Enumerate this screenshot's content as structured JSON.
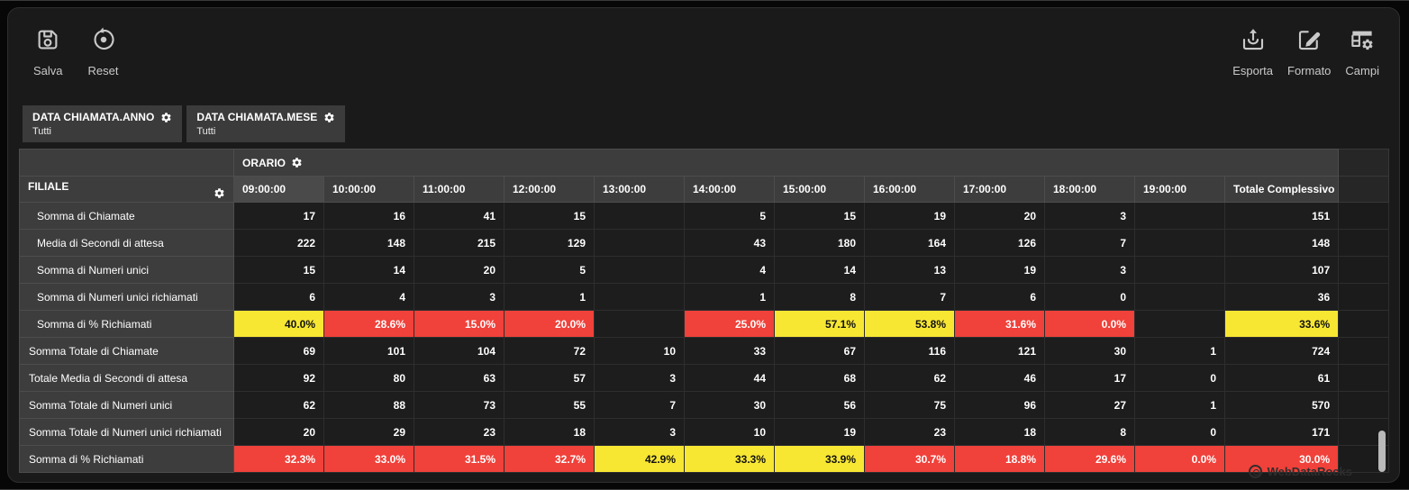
{
  "toolbar": {
    "left": [
      {
        "label": "Salva"
      },
      {
        "label": "Reset"
      }
    ],
    "right": [
      {
        "label": "Esporta"
      },
      {
        "label": "Formato"
      },
      {
        "label": "Campi"
      }
    ]
  },
  "filters": [
    {
      "name": "DATA CHIAMATA.ANNO",
      "value": "Tutti"
    },
    {
      "name": "DATA CHIAMATA.MESE",
      "value": "Tutti"
    }
  ],
  "pivot": {
    "column_group_label": "ORARIO",
    "row_group_label": "FILIALE",
    "columns": [
      "09:00:00",
      "10:00:00",
      "11:00:00",
      "12:00:00",
      "13:00:00",
      "14:00:00",
      "15:00:00",
      "16:00:00",
      "17:00:00",
      "18:00:00",
      "19:00:00",
      "Totale Complessivo"
    ],
    "rows": [
      {
        "label": "Somma di Chiamate",
        "indent": 1,
        "cells": [
          "17",
          "16",
          "41",
          "15",
          "",
          "5",
          "15",
          "19",
          "20",
          "3",
          "",
          "151"
        ]
      },
      {
        "label": "Media di Secondi di attesa",
        "indent": 1,
        "cells": [
          "222",
          "148",
          "215",
          "129",
          "",
          "43",
          "180",
          "164",
          "126",
          "7",
          "",
          "148"
        ]
      },
      {
        "label": "Somma di Numeri unici",
        "indent": 1,
        "cells": [
          "15",
          "14",
          "20",
          "5",
          "",
          "4",
          "14",
          "13",
          "19",
          "3",
          "",
          "107"
        ]
      },
      {
        "label": "Somma di Numeri unici richiamati",
        "indent": 1,
        "cells": [
          "6",
          "4",
          "3",
          "1",
          "",
          "1",
          "8",
          "7",
          "6",
          "0",
          "",
          "36"
        ]
      },
      {
        "label": "Somma di % Richiamati",
        "indent": 1,
        "cells": [
          "40.0%",
          "28.6%",
          "15.0%",
          "20.0%",
          "",
          "25.0%",
          "57.1%",
          "53.8%",
          "31.6%",
          "0.0%",
          "",
          "33.6%"
        ],
        "colors": [
          "yellow",
          "red",
          "red",
          "red",
          "",
          "red",
          "yellow",
          "yellow",
          "red",
          "red",
          "",
          "yellow"
        ]
      },
      {
        "label": "Somma Totale di Chiamate",
        "indent": 0,
        "cells": [
          "69",
          "101",
          "104",
          "72",
          "10",
          "33",
          "67",
          "116",
          "121",
          "30",
          "1",
          "724"
        ]
      },
      {
        "label": "Totale Media di Secondi di attesa",
        "indent": 0,
        "cells": [
          "92",
          "80",
          "63",
          "57",
          "3",
          "44",
          "68",
          "62",
          "46",
          "17",
          "0",
          "61"
        ]
      },
      {
        "label": "Somma Totale di Numeri unici",
        "indent": 0,
        "cells": [
          "62",
          "88",
          "73",
          "55",
          "7",
          "30",
          "56",
          "75",
          "96",
          "27",
          "1",
          "570"
        ]
      },
      {
        "label": "Somma Totale di Numeri unici richiamati",
        "indent": 0,
        "cells": [
          "20",
          "29",
          "23",
          "18",
          "3",
          "10",
          "19",
          "23",
          "18",
          "8",
          "0",
          "171"
        ]
      },
      {
        "label": "Somma di % Richiamati",
        "indent": 0,
        "cells": [
          "32.3%",
          "33.0%",
          "31.5%",
          "32.7%",
          "42.9%",
          "33.3%",
          "33.9%",
          "30.7%",
          "18.8%",
          "29.6%",
          "0.0%",
          "30.0%"
        ],
        "colors": [
          "red",
          "red",
          "red",
          "red",
          "yellow",
          "yellow",
          "yellow",
          "red",
          "red",
          "red",
          "red",
          "red"
        ]
      }
    ]
  },
  "watermark": "WebDataRocks",
  "colors": {
    "status_red": "#f0413a",
    "status_yellow": "#f7e733",
    "header_bg": "#3d3d3d",
    "cell_bg": "#1d1d1d",
    "panel_bg": "#1a1a1a"
  }
}
